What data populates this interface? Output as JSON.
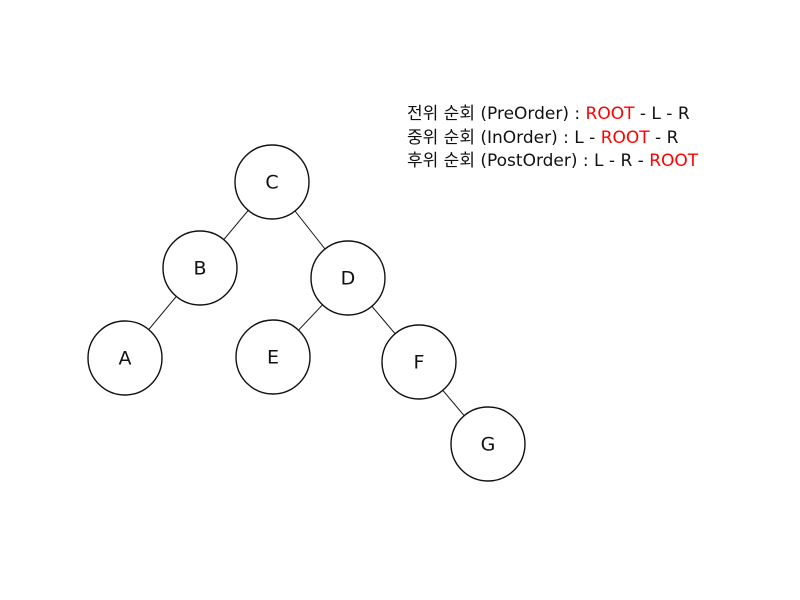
{
  "tree": {
    "nodes": [
      {
        "id": "C",
        "label": "C"
      },
      {
        "id": "B",
        "label": "B"
      },
      {
        "id": "D",
        "label": "D"
      },
      {
        "id": "A",
        "label": "A"
      },
      {
        "id": "E",
        "label": "E"
      },
      {
        "id": "F",
        "label": "F"
      },
      {
        "id": "G",
        "label": "G"
      }
    ],
    "edges": [
      {
        "from": "C",
        "to": "B"
      },
      {
        "from": "C",
        "to": "D"
      },
      {
        "from": "B",
        "to": "A"
      },
      {
        "from": "D",
        "to": "E"
      },
      {
        "from": "D",
        "to": "F"
      },
      {
        "from": "F",
        "to": "G"
      }
    ]
  },
  "legend": {
    "highlight_color": "#ff0000",
    "lines": [
      {
        "key": "preorder",
        "parts": [
          {
            "text": "전위 순회 (PreOrder) : ",
            "highlight": false
          },
          {
            "text": "ROOT",
            "highlight": true
          },
          {
            "text": " - L - R",
            "highlight": false
          }
        ]
      },
      {
        "key": "inorder",
        "parts": [
          {
            "text": "중위 순회 (InOrder) : L - ",
            "highlight": false
          },
          {
            "text": "ROOT",
            "highlight": true
          },
          {
            "text": " - R",
            "highlight": false
          }
        ]
      },
      {
        "key": "postorder",
        "parts": [
          {
            "text": "후위 순회 (PostOrder) : L - R - ",
            "highlight": false
          },
          {
            "text": "ROOT",
            "highlight": true
          }
        ]
      }
    ]
  }
}
